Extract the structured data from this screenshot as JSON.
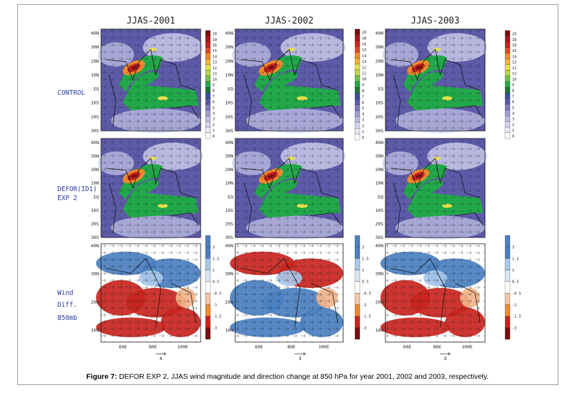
{
  "figure": {
    "column_titles": [
      "JJAS-2001",
      "JJAS-2002",
      "JJAS-2003"
    ],
    "row_labels": {
      "control": "CONTROL",
      "defor_line1": "DEFOR(ID1)",
      "defor_line2": "EXP 2",
      "wind_line1": "Wind",
      "wind_line2": "Diff.",
      "wind_line3": "850mb"
    },
    "lat_ticks_large": [
      "40N",
      "30N",
      "20N",
      "10N",
      "EQ",
      "10S",
      "20S",
      "30S"
    ],
    "lat_ticks_diff": [
      "40N",
      "30N",
      "20N",
      "10N"
    ],
    "lon_ticks": [
      "60E",
      "80E",
      "100E"
    ],
    "magnitude_colorbar": [
      "20",
      "18",
      "16",
      "15",
      "14",
      "13",
      "12",
      "11",
      "10",
      "9",
      "8",
      "7",
      "6",
      "5",
      "4",
      "3",
      "2",
      "1",
      "0"
    ],
    "diff_colorbar": [
      "3",
      "1.5",
      "1",
      "0.5",
      "-0.5",
      "-1",
      "-1.5",
      "-3"
    ],
    "reference_vectors": [
      "4",
      "3",
      "3"
    ],
    "palette": {
      "purple": "#5d5aa8",
      "lavender": "#c8c8ea",
      "green": "#22a84a",
      "darkgreen": "#1b7a37",
      "yellow": "#e8e14a",
      "orange": "#ef8a2e",
      "red": "#c8241e",
      "darkred": "#7a0e0e",
      "blue": "#4a7fc0",
      "lightblue": "#a8c8ea"
    }
  },
  "caption": {
    "label": "Figure 7:",
    "text": " DEFOR EXP 2, JJAS wind magnitude and direction change at 850 hPa for year 2001, 2002 and 2003, respectively."
  }
}
